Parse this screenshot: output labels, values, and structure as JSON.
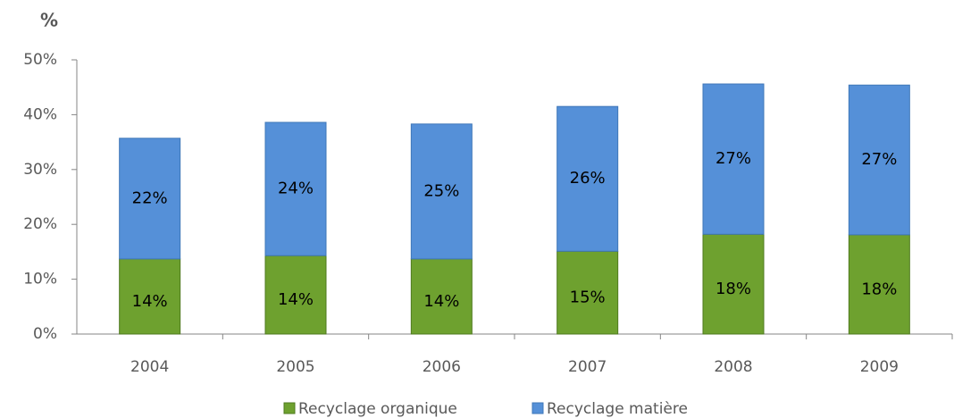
{
  "chart_data": {
    "type": "stacked_bar",
    "y_axis_label": "%",
    "categories": [
      "2004",
      "2005",
      "2006",
      "2007",
      "2008",
      "2009"
    ],
    "series": [
      {
        "name": "Recyclage organique",
        "color": "#6ea12f",
        "values": [
          13.7,
          14.3,
          13.7,
          15.1,
          18.2,
          18.1
        ],
        "value_labels": [
          "14%",
          "14%",
          "14%",
          "15%",
          "18%",
          "18%"
        ]
      },
      {
        "name": "Recyclage matière",
        "color": "#5590d8",
        "values": [
          22.0,
          24.3,
          24.6,
          26.4,
          27.4,
          27.3
        ],
        "value_labels": [
          "22%",
          "24%",
          "25%",
          "26%",
          "27%",
          "27%"
        ]
      }
    ],
    "ylim": [
      0,
      50
    ],
    "yticks": [
      {
        "value": 0,
        "label": "0%"
      },
      {
        "value": 10,
        "label": "10%"
      },
      {
        "value": 20,
        "label": "20%"
      },
      {
        "value": 30,
        "label": "30%"
      },
      {
        "value": 40,
        "label": "40%"
      },
      {
        "value": 50,
        "label": "50%"
      }
    ],
    "legend": "bottom"
  }
}
